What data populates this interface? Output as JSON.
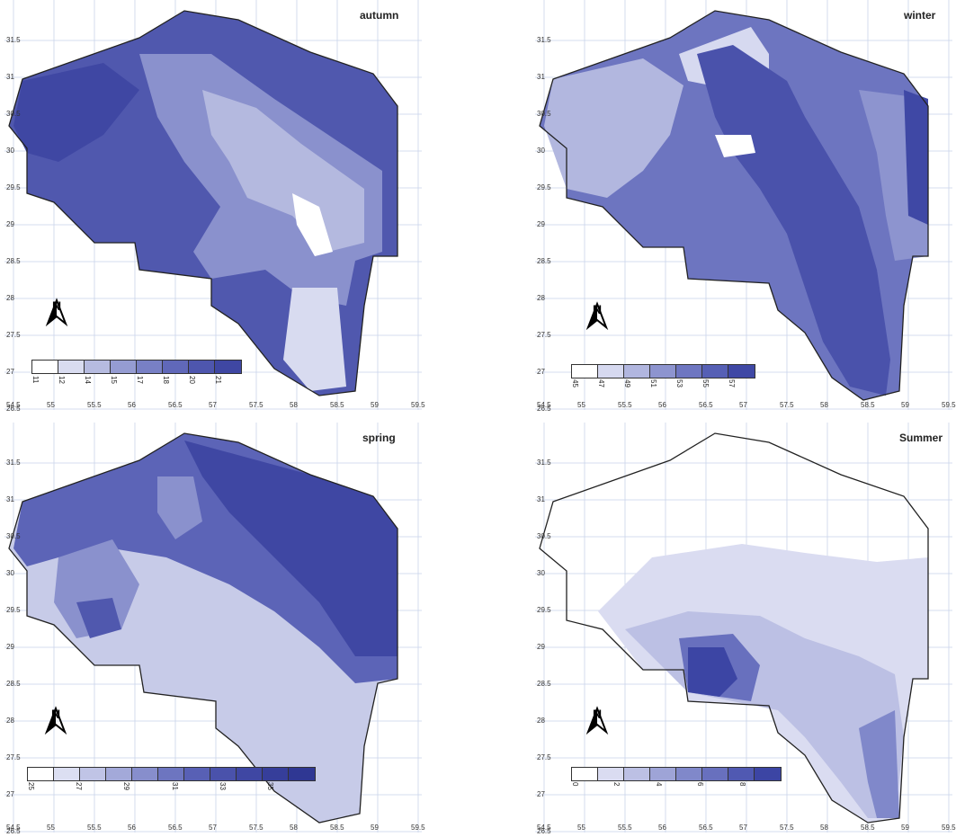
{
  "panels": [
    {
      "id": "autumn",
      "title": "autumn",
      "lat_ticks": [
        "31.5",
        "31",
        "30.5",
        "30",
        "29.5",
        "29",
        "28.5",
        "28",
        "27.5",
        "27",
        "26.5"
      ],
      "lon_ticks": [
        "54.5",
        "55",
        "55.5",
        "56",
        "56.5",
        "57",
        "57.5",
        "58",
        "58.5",
        "59",
        "59.5"
      ],
      "legend": [
        "11",
        "12",
        "14",
        "15",
        "17",
        "18",
        "20",
        "21"
      ],
      "palette": [
        "#ffffff",
        "#d9dcf0",
        "#b6bbe0",
        "#959cd2",
        "#7880c5",
        "#6068b9",
        "#4e56ae",
        "#3f47a3"
      ]
    },
    {
      "id": "winter",
      "title": "winter",
      "lat_ticks": [
        "31.5",
        "31",
        "30.5",
        "30",
        "29.5",
        "29",
        "28.5",
        "28",
        "27.5",
        "27",
        "26.5"
      ],
      "lon_ticks": [
        "54.5",
        "55",
        "55.5",
        "56",
        "56.5",
        "57",
        "57.5",
        "58",
        "58.5",
        "59",
        "59.5"
      ],
      "legend": [
        "45",
        "47",
        "49",
        "51",
        "53",
        "55",
        "57"
      ],
      "palette": [
        "#ffffff",
        "#d6d9f0",
        "#b1b6df",
        "#8d94cf",
        "#6e76c1",
        "#5660b5",
        "#3f48a5"
      ]
    },
    {
      "id": "spring",
      "title": "spring",
      "lat_ticks": [
        "31.5",
        "31",
        "30.5",
        "30",
        "29.5",
        "29",
        "28.5",
        "28",
        "27.5",
        "27",
        "26.5"
      ],
      "lon_ticks": [
        "54.5",
        "55",
        "55.5",
        "56",
        "56.5",
        "57",
        "57.5",
        "58",
        "58.5",
        "59",
        "59.5"
      ],
      "legend": [
        "25",
        "27",
        "29",
        "31",
        "33",
        "35"
      ],
      "palette": [
        "#ffffff",
        "#dcdff2",
        "#c0c4e6",
        "#a3a9d9",
        "#878ecc",
        "#6d75c0",
        "#5860b5",
        "#4a52ab",
        "#3f47a3",
        "#363e9a",
        "#2f3793"
      ]
    },
    {
      "id": "summer",
      "title": "Summer",
      "lat_ticks": [
        "31.5",
        "31",
        "30.5",
        "30",
        "29.5",
        "29",
        "28.5",
        "28",
        "27.5",
        "27",
        "26.5"
      ],
      "lon_ticks": [
        "54.5",
        "55",
        "55.5",
        "56",
        "56.5",
        "57",
        "57.5",
        "58",
        "58.5",
        "59",
        "59.5"
      ],
      "legend": [
        "0",
        "2",
        "4",
        "6",
        "8"
      ],
      "palette": [
        "#ffffff",
        "#dadcf1",
        "#bcc0e4",
        "#9ea4d7",
        "#8088ca",
        "#6870be",
        "#5059b2",
        "#3c45a4"
      ]
    }
  ],
  "north_label": "N"
}
